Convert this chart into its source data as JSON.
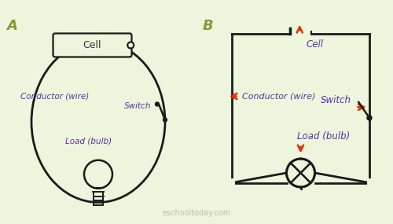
{
  "bg_color": "#edf5dc",
  "wire_color": "#1a1a1a",
  "label_color": "#5533aa",
  "arrow_color": "#dd3300",
  "section_label_color": "#889933",
  "watermark": "eschooltoday.com",
  "watermark_color": "#bbbbbb",
  "A_label": "A",
  "B_label": "B",
  "cell_label": "Cell",
  "conductor_label": "Conductor (wire)",
  "switch_label": "Switch",
  "load_label": "Load (bulb)"
}
